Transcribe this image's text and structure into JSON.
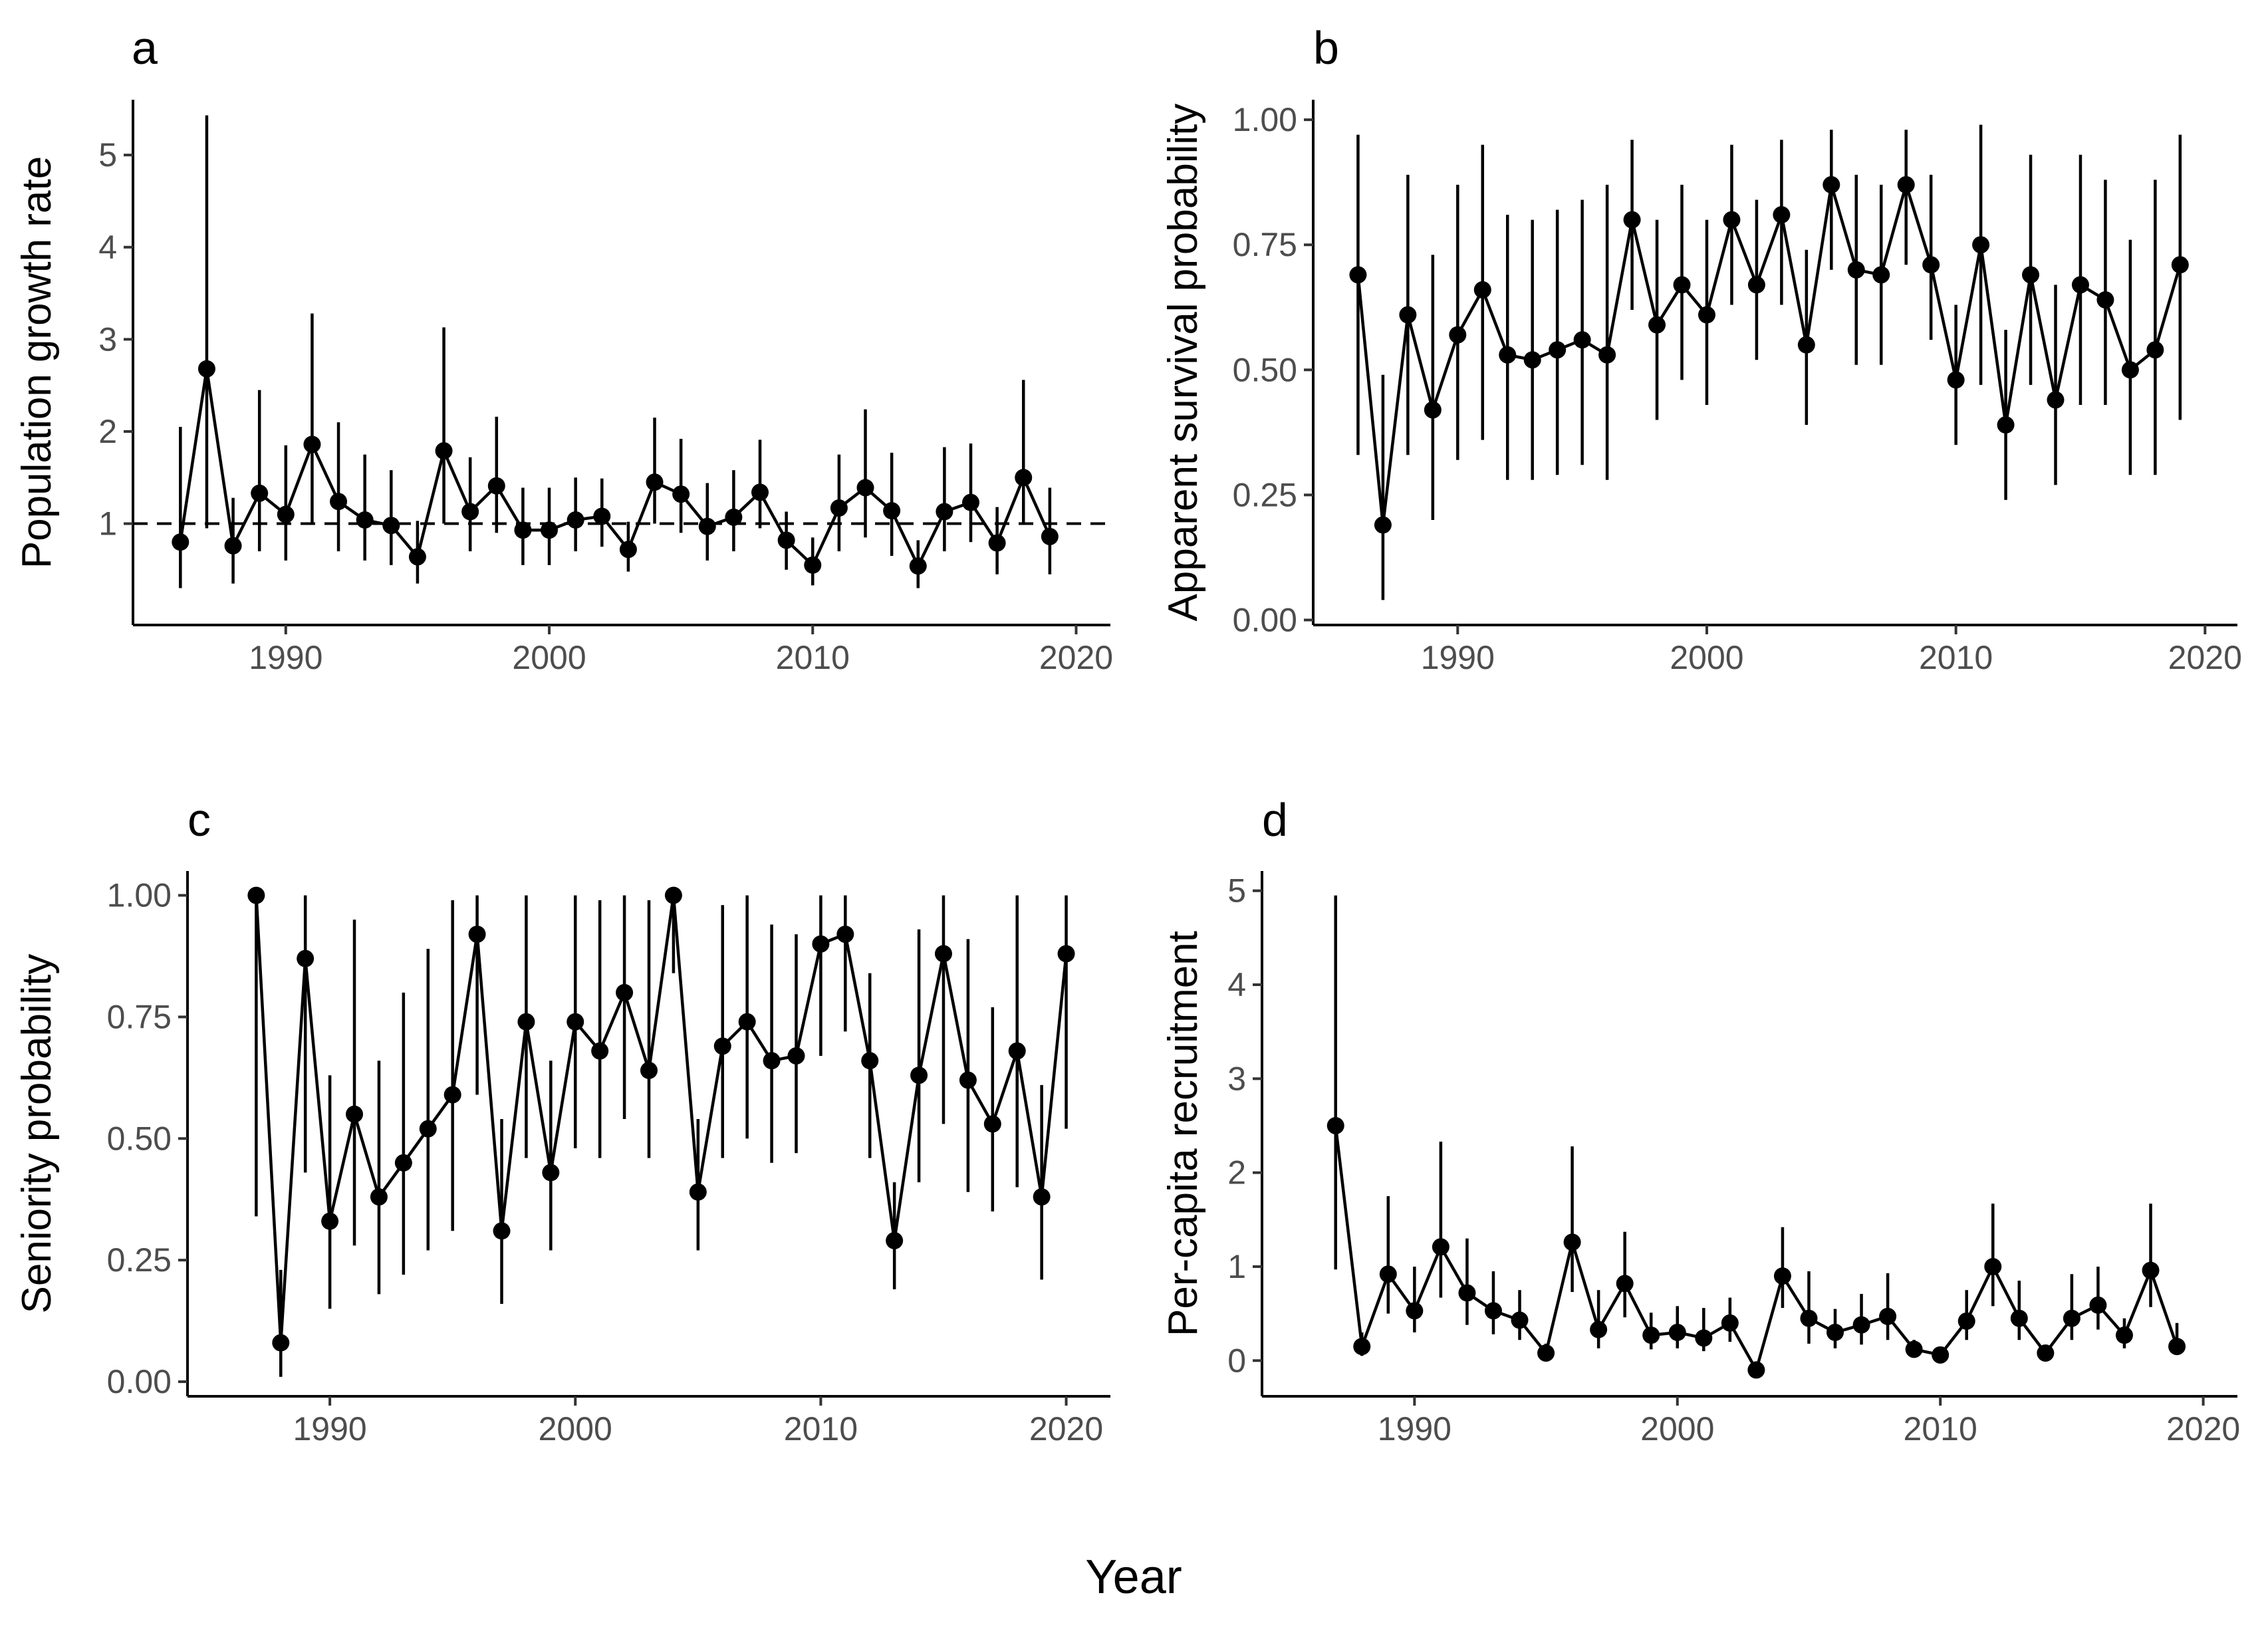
{
  "global_xlabel": "Year",
  "colors": {
    "ink": "#000000",
    "tick_text": "#4d4d4d",
    "background": "#ffffff"
  },
  "chart_data": [
    {
      "panel": "a",
      "type": "scatter",
      "ylabel": "Population growth rate",
      "xlabel": "",
      "xlim": [
        1984.2,
        2021.3
      ],
      "ylim": [
        -0.1,
        5.6
      ],
      "xticks": [
        1990,
        2000,
        2010,
        2020
      ],
      "yticks": [
        1,
        2,
        3,
        4,
        5
      ],
      "reference_line": 1,
      "x": [
        1986,
        1987,
        1988,
        1989,
        1990,
        1991,
        1992,
        1993,
        1994,
        1995,
        1996,
        1997,
        1998,
        1999,
        2000,
        2001,
        2002,
        2003,
        2004,
        2005,
        2006,
        2007,
        2008,
        2009,
        2010,
        2011,
        2012,
        2013,
        2014,
        2015,
        2016,
        2017,
        2018,
        2019
      ],
      "y": [
        0.8,
        2.68,
        0.76,
        1.33,
        1.1,
        1.86,
        1.24,
        1.04,
        0.98,
        0.64,
        1.79,
        1.13,
        1.41,
        0.93,
        0.93,
        1.04,
        1.08,
        0.72,
        1.45,
        1.32,
        0.97,
        1.07,
        1.34,
        0.82,
        0.55,
        1.17,
        1.39,
        1.14,
        0.54,
        1.13,
        1.23,
        0.79,
        1.5,
        0.86
      ],
      "lower": [
        0.3,
        0.95,
        0.35,
        0.7,
        0.6,
        1.0,
        0.7,
        0.6,
        0.55,
        0.35,
        1.0,
        0.7,
        0.9,
        0.55,
        0.55,
        0.7,
        0.75,
        0.48,
        1.0,
        0.9,
        0.6,
        0.7,
        0.95,
        0.5,
        0.33,
        0.7,
        0.85,
        0.65,
        0.3,
        0.7,
        0.8,
        0.45,
        1.0,
        0.45
      ],
      "upper": [
        2.05,
        5.43,
        1.28,
        2.45,
        1.85,
        3.28,
        2.1,
        1.75,
        1.58,
        1.03,
        3.13,
        1.72,
        2.16,
        1.39,
        1.39,
        1.5,
        1.49,
        1.02,
        2.15,
        1.92,
        1.44,
        1.58,
        1.91,
        1.13,
        0.85,
        1.75,
        2.24,
        1.77,
        0.82,
        1.83,
        1.87,
        1.18,
        2.56,
        1.39
      ]
    },
    {
      "panel": "b",
      "type": "scatter",
      "ylabel": "Apparent survival probability",
      "xlabel": "",
      "xlim": [
        1984.2,
        2021.3
      ],
      "ylim": [
        -0.01,
        1.04
      ],
      "xticks": [
        1990,
        2000,
        2010,
        2020
      ],
      "yticks": [
        0.0,
        0.25,
        0.5,
        0.75,
        1.0
      ],
      "ytick_labels": [
        "0.00",
        "0.25",
        "0.50",
        "0.75",
        "1.00"
      ],
      "x": [
        1986,
        1987,
        1988,
        1989,
        1990,
        1991,
        1992,
        1993,
        1994,
        1995,
        1996,
        1997,
        1998,
        1999,
        2000,
        2001,
        2002,
        2003,
        2004,
        2005,
        2006,
        2007,
        2008,
        2009,
        2010,
        2011,
        2012,
        2013,
        2014,
        2015,
        2016,
        2017,
        2018,
        2019
      ],
      "y": [
        0.69,
        0.19,
        0.61,
        0.42,
        0.57,
        0.66,
        0.53,
        0.52,
        0.54,
        0.56,
        0.53,
        0.8,
        0.59,
        0.67,
        0.61,
        0.8,
        0.67,
        0.81,
        0.55,
        0.87,
        0.7,
        0.69,
        0.87,
        0.71,
        0.48,
        0.75,
        0.39,
        0.69,
        0.44,
        0.67,
        0.64,
        0.5,
        0.54,
        0.71
      ],
      "lower": [
        0.33,
        0.04,
        0.33,
        0.2,
        0.32,
        0.36,
        0.28,
        0.28,
        0.29,
        0.31,
        0.28,
        0.62,
        0.4,
        0.48,
        0.43,
        0.63,
        0.52,
        0.63,
        0.39,
        0.7,
        0.51,
        0.51,
        0.71,
        0.56,
        0.35,
        0.47,
        0.24,
        0.47,
        0.27,
        0.43,
        0.43,
        0.29,
        0.29,
        0.4
      ],
      "upper": [
        0.97,
        0.49,
        0.89,
        0.73,
        0.87,
        0.95,
        0.81,
        0.8,
        0.82,
        0.84,
        0.87,
        0.96,
        0.8,
        0.87,
        0.8,
        0.95,
        0.84,
        0.96,
        0.74,
        0.98,
        0.89,
        0.87,
        0.98,
        0.89,
        0.63,
        0.99,
        0.58,
        0.93,
        0.67,
        0.93,
        0.88,
        0.76,
        0.88,
        0.97
      ]
    },
    {
      "panel": "c",
      "type": "scatter",
      "ylabel": "Seniority probability",
      "xlabel": "",
      "xlim": [
        1984.2,
        2021.8
      ],
      "ylim": [
        -0.03,
        1.05
      ],
      "xticks": [
        1990,
        2000,
        2010,
        2020
      ],
      "yticks": [
        0.0,
        0.25,
        0.5,
        0.75,
        1.0
      ],
      "ytick_labels": [
        "0.00",
        "0.25",
        "0.50",
        "0.75",
        "1.00"
      ],
      "x": [
        1987,
        1988,
        1989,
        1990,
        1991,
        1992,
        1993,
        1994,
        1995,
        1996,
        1997,
        1998,
        1999,
        2000,
        2001,
        2002,
        2003,
        2004,
        2005,
        2006,
        2007,
        2008,
        2009,
        2010,
        2011,
        2012,
        2013,
        2014,
        2015,
        2016,
        2017,
        2018,
        2019,
        2020
      ],
      "y": [
        1.0,
        0.08,
        0.87,
        0.33,
        0.55,
        0.38,
        0.45,
        0.52,
        0.59,
        0.92,
        0.31,
        0.74,
        0.43,
        0.74,
        0.68,
        0.8,
        0.64,
        1.0,
        0.39,
        0.69,
        0.74,
        0.66,
        0.67,
        0.9,
        0.92,
        0.66,
        0.29,
        0.63,
        0.88,
        0.62,
        0.53,
        0.68,
        0.38,
        0.88
      ],
      "lower": [
        0.34,
        0.01,
        0.43,
        0.15,
        0.28,
        0.18,
        0.22,
        0.27,
        0.31,
        0.59,
        0.16,
        0.46,
        0.27,
        0.48,
        0.46,
        0.54,
        0.46,
        0.84,
        0.27,
        0.46,
        0.5,
        0.45,
        0.47,
        0.67,
        0.72,
        0.46,
        0.19,
        0.41,
        0.53,
        0.39,
        0.35,
        0.4,
        0.21,
        0.52
      ],
      "upper": [
        1.0,
        0.23,
        1.0,
        0.63,
        0.95,
        0.66,
        0.8,
        0.89,
        0.99,
        1.0,
        0.54,
        1.0,
        0.66,
        1.0,
        0.99,
        1.0,
        0.99,
        1.0,
        0.54,
        0.98,
        1.0,
        0.94,
        0.92,
        1.0,
        1.0,
        0.84,
        0.41,
        0.93,
        1.0,
        0.91,
        0.77,
        1.0,
        0.61,
        1.0
      ]
    },
    {
      "panel": "d",
      "type": "scatter",
      "ylabel": "Per-capita recruitment",
      "xlabel": "",
      "xlim": [
        1984.2,
        2021.3
      ],
      "ylim": [
        -0.38,
        5.21
      ],
      "xticks": [
        1990,
        2000,
        2010,
        2020
      ],
      "yticks": [
        0,
        1,
        2,
        3,
        4,
        5
      ],
      "x": [
        1987,
        1988,
        1989,
        1990,
        1991,
        1992,
        1993,
        1994,
        1995,
        1996,
        1997,
        1998,
        1999,
        2000,
        2001,
        2002,
        2003,
        2004,
        2005,
        2006,
        2007,
        2008,
        2009,
        2010,
        2011,
        2012,
        2013,
        2014,
        2015,
        2016,
        2017,
        2018,
        2019
      ],
      "y": [
        2.5,
        0.15,
        0.92,
        0.53,
        1.21,
        0.72,
        0.53,
        0.43,
        0.08,
        1.26,
        0.33,
        0.82,
        0.27,
        0.3,
        0.24,
        0.4,
        -0.1,
        0.9,
        0.45,
        0.3,
        0.38,
        0.47,
        0.12,
        0.06,
        0.42,
        1.0,
        0.45,
        0.08,
        0.45,
        0.59,
        0.27,
        0.96,
        0.15
      ],
      "lower": [
        0.97,
        0.05,
        0.5,
        0.3,
        0.67,
        0.38,
        0.28,
        0.22,
        0.03,
        0.73,
        0.13,
        0.46,
        0.12,
        0.13,
        0.1,
        0.2,
        -0.1,
        0.56,
        0.18,
        0.13,
        0.17,
        0.22,
        0.05,
        0.02,
        0.22,
        0.58,
        0.22,
        0.04,
        0.22,
        0.33,
        0.13,
        0.57,
        0.06
      ],
      "upper": [
        4.95,
        0.3,
        1.75,
        1.0,
        2.33,
        1.3,
        0.95,
        0.75,
        0.18,
        2.28,
        0.75,
        1.37,
        0.51,
        0.58,
        0.56,
        0.67,
        -0.1,
        1.42,
        0.95,
        0.55,
        0.71,
        0.93,
        0.22,
        0.12,
        0.75,
        1.67,
        0.85,
        0.15,
        0.92,
        1.0,
        0.45,
        1.67,
        0.4
      ]
    }
  ]
}
